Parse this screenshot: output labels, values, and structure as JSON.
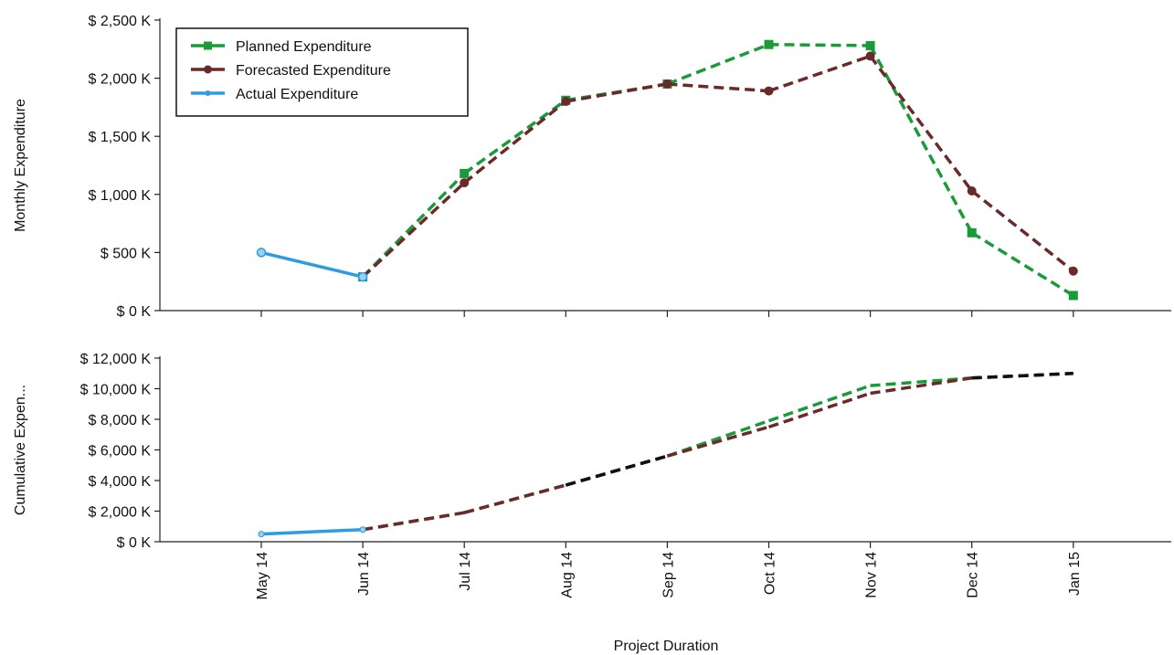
{
  "chart_data": [
    {
      "type": "line",
      "ylabel": "Monthly Expenditure",
      "ylim": [
        0,
        2500
      ],
      "y_ticks": [
        "$ 0 K",
        "$ 500 K",
        "$ 1,000 K",
        "$ 1,500 K",
        "$ 2,000 K",
        "$ 2,500 K"
      ],
      "categories": [
        "May 14",
        "Jun 14",
        "Jul 14",
        "Aug 14",
        "Sep 14",
        "Oct 14",
        "Nov 14",
        "Dec 14",
        "Jan 15"
      ],
      "legend": {
        "position": "top-left",
        "entries": [
          "Planned Expenditure",
          "Forecasted Expenditure",
          "Actual Expenditure"
        ]
      },
      "series": [
        {
          "name": "Planned Expenditure",
          "color": "#1a9b3a",
          "style": "dashed",
          "marker": "square",
          "values": [
            null,
            290,
            1180,
            1810,
            1950,
            2290,
            2280,
            670,
            130
          ]
        },
        {
          "name": "Forecasted Expenditure",
          "color": "#6b2a2a",
          "style": "dashed",
          "marker": "circle",
          "values": [
            null,
            290,
            1100,
            1800,
            1950,
            1890,
            2190,
            1030,
            340
          ]
        },
        {
          "name": "Actual Expenditure",
          "color": "#2f9be0",
          "style": "solid",
          "marker": "dot",
          "values": [
            500,
            290,
            null,
            null,
            null,
            null,
            null,
            null,
            null
          ]
        }
      ],
      "overlap_color": "#111111"
    },
    {
      "type": "line",
      "ylabel": "Cumulative Expen...",
      "ylim": [
        0,
        12000
      ],
      "y_ticks": [
        "$ 0 K",
        "$ 2,000 K",
        "$ 4,000 K",
        "$ 6,000 K",
        "$ 8,000 K",
        "$ 10,000 K",
        "$ 12,000 K"
      ],
      "categories": [
        "May 14",
        "Jun 14",
        "Jul 14",
        "Aug 14",
        "Sep 14",
        "Oct 14",
        "Nov 14",
        "Dec 14",
        "Jan 15"
      ],
      "xlabel": "Project Duration",
      "series": [
        {
          "name": "Planned Expenditure",
          "color": "#1a9b3a",
          "style": "dashed",
          "values": [
            null,
            790,
            1900,
            3700,
            5600,
            7900,
            10200,
            10700,
            11000
          ]
        },
        {
          "name": "Forecasted Expenditure",
          "color": "#6b2a2a",
          "style": "dashed",
          "values": [
            null,
            790,
            1900,
            3700,
            5600,
            7500,
            9700,
            10700,
            11000
          ]
        },
        {
          "name": "Actual Expenditure",
          "color": "#2f9be0",
          "style": "solid",
          "values": [
            500,
            790,
            null,
            null,
            null,
            null,
            null,
            null,
            null
          ]
        }
      ],
      "overlap_color": "#111111"
    }
  ]
}
